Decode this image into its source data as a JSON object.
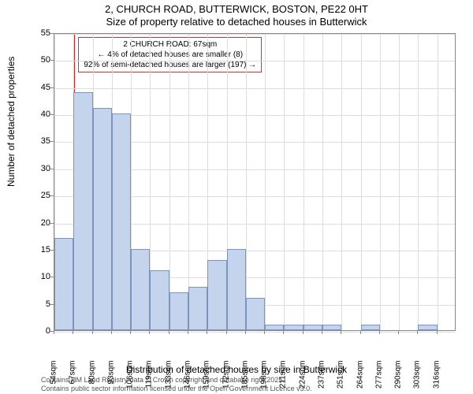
{
  "title_main": "2, CHURCH ROAD, BUTTERWICK, BOSTON, PE22 0HT",
  "title_sub": "Size of property relative to detached houses in Butterwick",
  "y_axis_label": "Number of detached properties",
  "x_axis_label": "Distribution of detached houses by size in Butterwick",
  "chart": {
    "type": "histogram",
    "ylim": [
      0,
      55
    ],
    "ytick_step": 5,
    "yticks": [
      0,
      5,
      10,
      15,
      20,
      25,
      30,
      35,
      40,
      45,
      50,
      55
    ],
    "x_categories": [
      "54sqm",
      "67sqm",
      "80sqm",
      "93sqm",
      "106sqm",
      "119sqm",
      "133sqm",
      "146sqm",
      "159sqm",
      "172sqm",
      "185sqm",
      "198sqm",
      "211sqm",
      "224sqm",
      "237sqm",
      "251sqm",
      "264sqm",
      "277sqm",
      "290sqm",
      "303sqm",
      "316sqm"
    ],
    "values": [
      17,
      44,
      41,
      40,
      15,
      11,
      7,
      8,
      13,
      15,
      6,
      1,
      1,
      1,
      1,
      0,
      1,
      0,
      0,
      1,
      0
    ],
    "bar_fill": "#c4d4ed",
    "bar_border": "#7a93c0",
    "grid_color": "#ddd",
    "axis_color": "#888",
    "background": "#ffffff"
  },
  "reference_line": {
    "position_index": 1,
    "color": "#dd2222"
  },
  "annotation": {
    "line1": "2 CHURCH ROAD: 67sqm",
    "line2": "← 4% of detached houses are smaller (8)",
    "line3": "92% of semi-detached houses are larger (197) →",
    "border_color": "#cc3333"
  },
  "citation_line1": "Contains HM Land Registry data © Crown copyright and database right 2025.",
  "citation_line2": "Contains public sector information licensed under the Open Government Licence v3.0."
}
